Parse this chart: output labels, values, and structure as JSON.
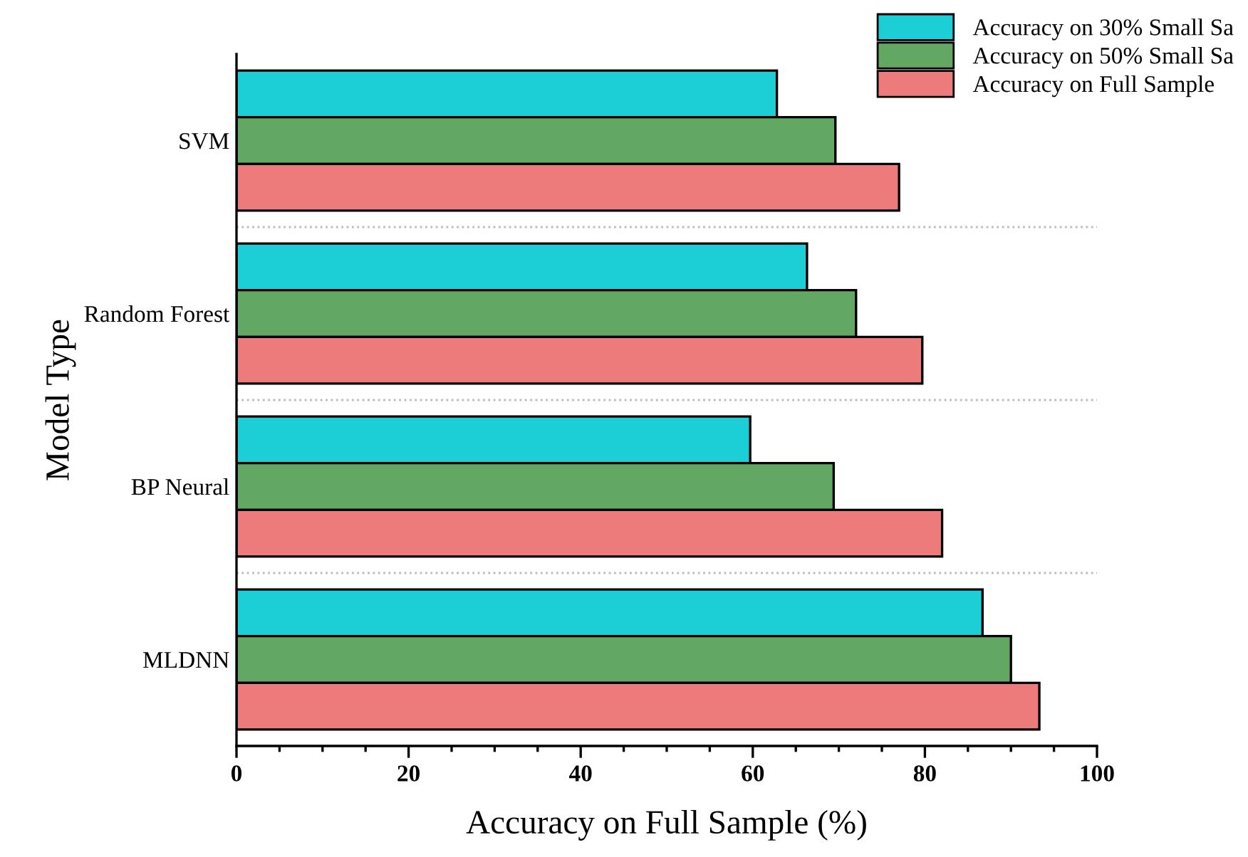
{
  "chart_data": {
    "type": "bar",
    "orientation": "horizontal",
    "xlabel": "Accuracy on Full Sample (%)",
    "ylabel": "Model Type",
    "categories": [
      "SVM",
      "Random Forest",
      "BP Neural",
      "MLDNN"
    ],
    "series": [
      {
        "name": "Accuracy on 30% Small Sa",
        "color": "#1ccfd6",
        "values": [
          62.8,
          66.3,
          59.7,
          86.7
        ]
      },
      {
        "name": "Accuracy on 50% Small Sa",
        "color": "#62a862",
        "values": [
          69.6,
          72.0,
          69.4,
          90.0
        ]
      },
      {
        "name": "Accuracy on Full Sample",
        "color": "#ee7b7b",
        "values": [
          77.0,
          79.7,
          82.0,
          93.3
        ]
      }
    ],
    "xlim": [
      0,
      100
    ],
    "xticks": [
      0,
      20,
      40,
      60,
      80,
      100
    ],
    "grid": "y",
    "legend": "top right"
  }
}
